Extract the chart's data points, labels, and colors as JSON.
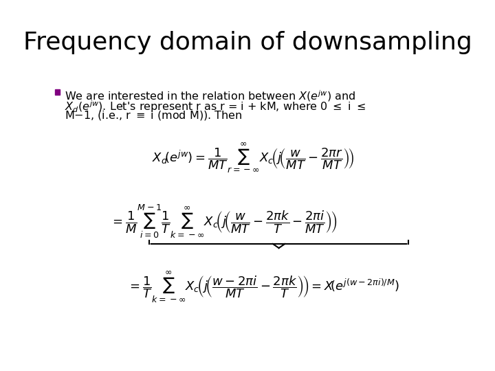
{
  "title": "Frequency domain of downsampling",
  "background_color": "#ffffff",
  "title_color": "#000000",
  "title_fontsize": 26,
  "bullet_color": "#800080",
  "text_color": "#000000",
  "bullet_text": "We are interested in the relation between $X(e^{jw})$ and\n$X_d(e^{jw})$. Let's represent r as r = i + kM, where 0 $\\bullet$ i $\\bullet$\nM$-$1, (i.e., r $\\equiv$ i (mod M)). Then",
  "eq1": "$X_d(e^{jw}) = \\dfrac{1}{MT} \\displaystyle\\sum_{r=-\\infty}^{\\infty} X_c\\!\\left( j\\!\\left(\\dfrac{w}{MT} - \\dfrac{2\\pi r}{MT}\\right)\\right)$",
  "eq2": "$= \\dfrac{1}{M} \\displaystyle\\sum_{i=0}^{M-1} \\dfrac{1}{T} \\displaystyle\\sum_{k=-\\infty}^{\\infty} X_c\\!\\left( j\\!\\left(\\dfrac{w}{MT} - \\dfrac{2\\pi k}{T} - \\dfrac{2\\pi i}{MT}\\right)\\right)$",
  "eq3": "$= \\dfrac{1}{T} \\displaystyle\\sum_{k=-\\infty}^{\\infty} X_c\\!\\left( j\\!\\left(\\dfrac{w - 2\\pi i}{MT} - \\dfrac{2\\pi k}{T}\\right)\\right) = X(e^{j(w-2\\pi i)/M})$"
}
